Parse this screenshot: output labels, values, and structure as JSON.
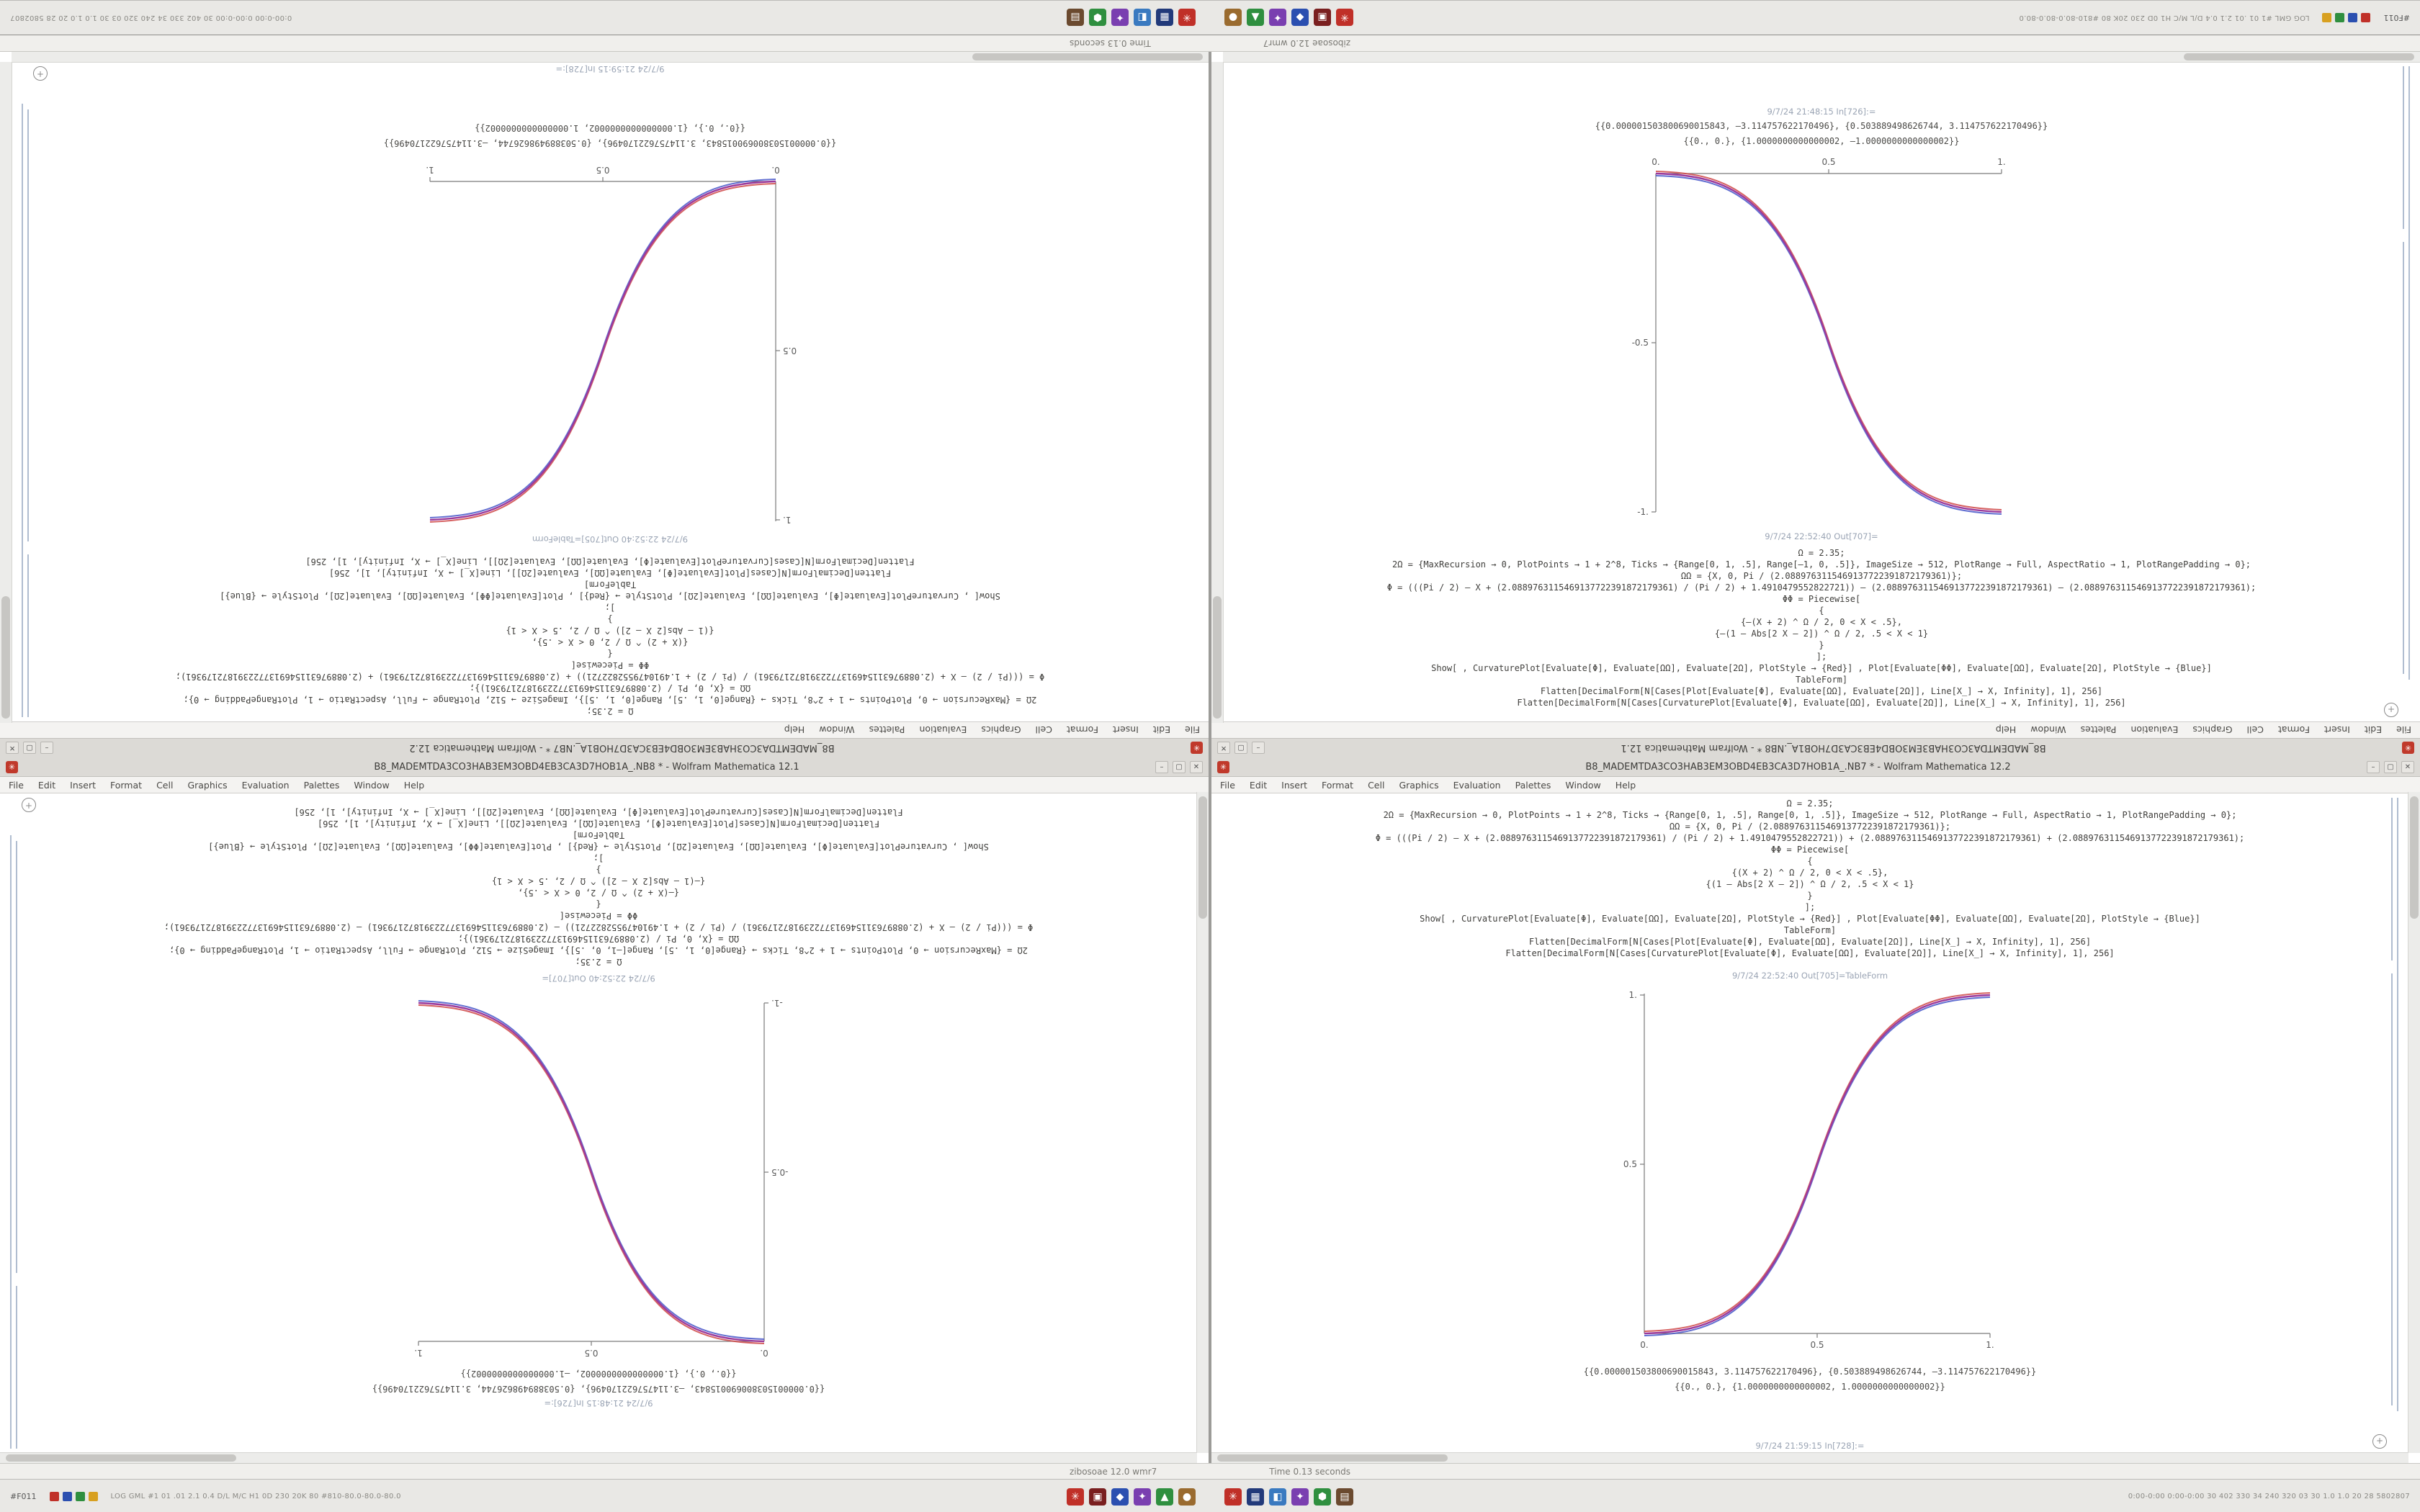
{
  "desktop": {
    "taskbar": {
      "left_tag": "#F011",
      "left_icons": [
        {
          "bg": "#c03028",
          "glyph": ""
        },
        {
          "bg": "#2b4fb0",
          "glyph": ""
        },
        {
          "bg": "#2f8f3f",
          "glyph": ""
        },
        {
          "bg": "#d8a020",
          "glyph": ""
        }
      ],
      "left_text": "LOG GML #1 01 .01 2.1 0.4 D/L M/C H1 0D 230 20K 80 #810-80.0-80.0-80.0",
      "right_text": "0:00-0:00 0:00-0:00 30 402 330 34 240 320 03 30 1.0 1.0 20 28 5802807",
      "group1": [
        {
          "bg": "#c03028",
          "glyph": "✳"
        },
        {
          "bg": "#7a1f1f",
          "glyph": "▣"
        },
        {
          "bg": "#2b4fb0",
          "glyph": "◆"
        },
        {
          "bg": "#7a3fb0",
          "glyph": "✦"
        },
        {
          "bg": "#2f8f3f",
          "glyph": "▲"
        },
        {
          "bg": "#9a6b2f",
          "glyph": "●"
        }
      ],
      "group2": [
        {
          "bg": "#c03028",
          "glyph": "✳"
        },
        {
          "bg": "#223a7a",
          "glyph": "▦"
        },
        {
          "bg": "#3a7ac0",
          "glyph": "◧"
        },
        {
          "bg": "#7a3fb0",
          "glyph": "✦"
        },
        {
          "bg": "#2f8f3f",
          "glyph": "⬢"
        },
        {
          "bg": "#6b4a2f",
          "glyph": "▤"
        }
      ]
    },
    "status_left": "zibosoae 12.0 wmr7",
    "status_right": "Time 0.13 seconds"
  },
  "chrome": {
    "min": "–",
    "max": "▢",
    "close": "✕"
  },
  "menu": {
    "items": [
      "File",
      "Edit",
      "Insert",
      "Format",
      "Cell",
      "Graphics",
      "Evaluation",
      "Palettes",
      "Window",
      "Help"
    ]
  },
  "wr": {
    "title": "B8_MADEMTDA3CO3HAB3EM3OBD4EB3CA3D7HOB1A_.NB7 * - Wolfram Mathematica 12.2",
    "cells": [
      "Ω = 2.35;",
      "2Ω = {MaxRecursion → 0, PlotPoints → 1 + 2^8, Ticks → {Range[0, 1, .5], Range[0, 1, .5]}, ImageSize → 512, PlotRange → Full, AspectRatio → 1, PlotRangePadding → 0};",
      "ΩΩ = {X, 0, Pi / (2.0889763115469137722391872179361)};",
      "Φ = (((Pi / 2) – X + (2.0889763115469137722391872179361) / (Pi / 2) + 1.4910479552822721)) + (2.0889763115469137722391872179361) + (2.0889763115469137722391872179361);",
      "ΦΦ = Piecewise[",
      "{",
      "{(X + 2) ^ Ω / 2, 0 < X < .5},",
      "{(1 – Abs[2 X – 2]) ^ Ω / 2, .5 < X < 1}",
      "}",
      "];",
      "Show[ , CurvaturePlot[Evaluate[Φ], Evaluate[ΩΩ], Evaluate[2Ω], PlotStyle → {Red}] , Plot[Evaluate[ΦΦ], Evaluate[ΩΩ], Evaluate[2Ω], PlotStyle → {Blue}]",
      "TableForm]",
      "Flatten[DecimalForm[N[Cases[Plot[Evaluate[Φ], Evaluate[ΩΩ], Evaluate[2Ω]], Line[X_] → X, Infinity], 1], 256]",
      "Flatten[DecimalForm[N[Cases[CurvaturePlot[Evaluate[Φ], Evaluate[ΩΩ], Evaluate[2Ω]], Line[X_] → X, Infinity], 1], 256]"
    ],
    "out_label": "9/7/24 22:52:40 Out[705]=TableForm",
    "results": [
      "{{0.000001503800690015843, 3.114757622170496}, {0.503889498626744, –3.114757622170496}}",
      "{{0., 0.}, {1.0000000000000002, 1.0000000000000002}}"
    ],
    "trailing": "9/7/24 21:59:15 In[728]:=",
    "plot": {
      "x_ticks": [
        "0.",
        "0.5",
        "1."
      ],
      "y_ticks": [
        "0.5",
        "1."
      ]
    }
  },
  "wl": {
    "title": "B8_MADEMTDA3CO3HAB3EM3OBD4EB3CA3D7HOB1A_.NB8 * - Wolfram Mathematica 12.1",
    "cells": [
      "Ω = 2.35;",
      "2Ω = {MaxRecursion → 0, PlotPoints → 1 + 2^8, Ticks → {Range[0, 1, .5], Range[–1, 0, .5]}, ImageSize → 512, PlotRange → Full, AspectRatio → 1, PlotRangePadding → 0};",
      "ΩΩ = {X, 0, Pi / (2.0889763115469137722391872179361)};",
      "Φ = (((Pi / 2) – X + (2.0889763115469137722391872179361) / (Pi / 2) + 1.4910479552822721)) – (2.0889763115469137722391872179361) – (2.0889763115469137722391872179361);",
      "ΦΦ = Piecewise[",
      "{",
      "{–(X + 2) ^ Ω / 2, 0 < X < .5},",
      "{–(1 – Abs[2 X – 2]) ^ Ω / 2, .5 < X < 1}",
      "}",
      "];",
      "Show[ , CurvaturePlot[Evaluate[Φ], Evaluate[ΩΩ], Evaluate[2Ω], PlotStyle → {Red}] , Plot[Evaluate[ΦΦ], Evaluate[ΩΩ], Evaluate[2Ω], PlotStyle → {Blue}]",
      "TableForm]",
      "Flatten[DecimalForm[N[Cases[Plot[Evaluate[Φ], Evaluate[ΩΩ], Evaluate[2Ω]], Line[X_] → X, Infinity], 1], 256]",
      "Flatten[DecimalForm[N[Cases[CurvaturePlot[Evaluate[Φ], Evaluate[ΩΩ], Evaluate[2Ω]], Line[X_] → X, Infinity], 1], 256]"
    ],
    "out_label": "9/7/24 22:52:40 Out[707]=",
    "results": [
      "{{0.000001503800690015843, –3.114757622170496}, {0.503889498626744, 3.114757622170496}}",
      "{{0., 0.}, {1.0000000000000002, –1.0000000000000002}}"
    ],
    "trailing": "9/7/24 21:48:15 In[726]:=",
    "plot": {
      "x_ticks": [
        "0.",
        "0.5",
        "1."
      ],
      "y_ticks": [
        "-0.5",
        "-1."
      ]
    }
  },
  "chart_data": [
    {
      "type": "line",
      "title": "Out[705] ascending sigmoid (CurvaturePlot red + Plot blue overlay)",
      "x": [
        0,
        0.1,
        0.2,
        0.3,
        0.4,
        0.5,
        0.6,
        0.7,
        0.8,
        0.9,
        1
      ],
      "y": [
        0,
        0.01,
        0.06,
        0.16,
        0.31,
        0.5,
        0.69,
        0.84,
        0.94,
        0.99,
        1
      ],
      "xlim": [
        0,
        1
      ],
      "ylim": [
        0,
        1
      ],
      "x_ticks": [
        "0.",
        "0.5",
        "1."
      ],
      "y_ticks": [
        "0.5",
        "1."
      ],
      "instances": 2
    },
    {
      "type": "line",
      "title": "Out[707] descending sigmoid (CurvaturePlot red + Plot blue overlay)",
      "x": [
        0,
        0.1,
        0.2,
        0.3,
        0.4,
        0.5,
        0.6,
        0.7,
        0.8,
        0.9,
        1
      ],
      "y": [
        0,
        -0.01,
        -0.06,
        -0.16,
        -0.31,
        -0.5,
        -0.69,
        -0.84,
        -0.94,
        -0.99,
        -1
      ],
      "xlim": [
        0,
        1
      ],
      "ylim": [
        -1,
        0
      ],
      "x_ticks": [
        "0.",
        "0.5",
        "1."
      ],
      "y_ticks": [
        "-0.5",
        "-1."
      ],
      "instances": 2
    }
  ]
}
